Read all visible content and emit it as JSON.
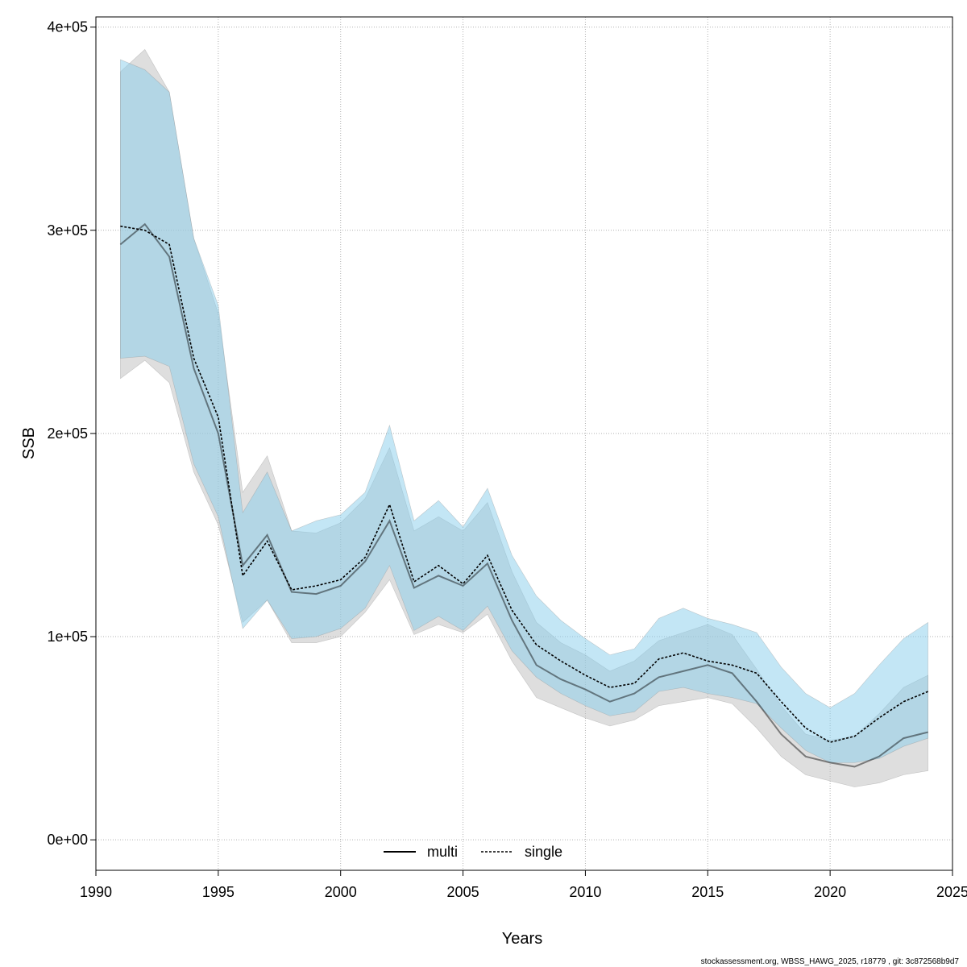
{
  "chart_data": {
    "type": "line",
    "xlabel": "Years",
    "ylabel": "SSB",
    "xlim": [
      1990,
      2025
    ],
    "ylim": [
      -15000,
      405000
    ],
    "x_ticks": [
      1990,
      1995,
      2000,
      2005,
      2010,
      2015,
      2020,
      2025
    ],
    "y_ticks": [
      0,
      100000,
      200000,
      300000,
      400000
    ],
    "y_tick_labels": [
      "0e+00",
      "1e+05",
      "2e+05",
      "3e+05",
      "4e+05"
    ],
    "grid": true,
    "legend_position": "bottom",
    "x": [
      1991,
      1992,
      1993,
      1994,
      1995,
      1996,
      1997,
      1998,
      1999,
      2000,
      2001,
      2002,
      2003,
      2004,
      2005,
      2006,
      2007,
      2008,
      2009,
      2010,
      2011,
      2012,
      2013,
      2014,
      2015,
      2016,
      2017,
      2018,
      2019,
      2020,
      2021,
      2022,
      2023,
      2024
    ],
    "series": [
      {
        "name": "multi",
        "color": "#000000",
        "line_style": "solid",
        "band_color": "#bebebe",
        "values": [
          293000,
          303000,
          287000,
          232000,
          200000,
          135000,
          150000,
          122000,
          121000,
          125000,
          137000,
          157000,
          124000,
          130000,
          125000,
          136000,
          108000,
          86000,
          79000,
          74000,
          68000,
          72000,
          80000,
          83000,
          86000,
          82000,
          68000,
          52000,
          41000,
          38000,
          36000,
          41000,
          50000,
          53000
        ],
        "lower": [
          227000,
          236000,
          225000,
          181000,
          155000,
          107000,
          118000,
          97000,
          97000,
          100000,
          112000,
          128000,
          101000,
          106000,
          102000,
          111000,
          88000,
          70000,
          65000,
          60000,
          56000,
          59000,
          66000,
          68000,
          70000,
          67000,
          55000,
          41000,
          32000,
          29000,
          26000,
          28000,
          32000,
          34000
        ],
        "upper": [
          378000,
          389000,
          368000,
          296000,
          259000,
          171000,
          189000,
          152000,
          151000,
          156000,
          168000,
          193000,
          152000,
          159000,
          152000,
          166000,
          132000,
          107000,
          97000,
          91000,
          83000,
          88000,
          98000,
          102000,
          106000,
          101000,
          84000,
          66000,
          52000,
          49000,
          51000,
          62000,
          75000,
          81000
        ]
      },
      {
        "name": "single",
        "color": "#000000",
        "line_style": "dotted",
        "band_color": "#87ceeb",
        "values": [
          302000,
          300000,
          293000,
          237000,
          208000,
          130000,
          147000,
          123000,
          125000,
          128000,
          139000,
          165000,
          127000,
          135000,
          126000,
          140000,
          113000,
          96000,
          88000,
          81000,
          75000,
          77000,
          89000,
          92000,
          88000,
          86000,
          82000,
          68000,
          55000,
          48000,
          51000,
          60000,
          68000,
          73000
        ],
        "lower": [
          237000,
          238000,
          233000,
          185000,
          159000,
          104000,
          118000,
          99000,
          100000,
          104000,
          114000,
          135000,
          103000,
          110000,
          103000,
          115000,
          93000,
          80000,
          72000,
          66000,
          61000,
          63000,
          73000,
          75000,
          72000,
          70000,
          67000,
          55000,
          44000,
          38000,
          38000,
          40000,
          46000,
          50000
        ],
        "upper": [
          384000,
          379000,
          368000,
          296000,
          263000,
          161000,
          181000,
          152000,
          157000,
          160000,
          171000,
          204000,
          157000,
          167000,
          154000,
          173000,
          140000,
          120000,
          108000,
          99000,
          91000,
          94000,
          109000,
          114000,
          109000,
          106000,
          102000,
          85000,
          72000,
          65000,
          72000,
          86000,
          99000,
          107000
        ]
      }
    ]
  },
  "footer_text": "stockassessment.org, WBSS_HAWG_2025, r18779 , git: 3c872568b9d7"
}
